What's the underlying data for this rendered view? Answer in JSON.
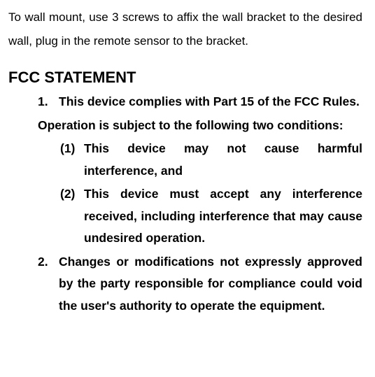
{
  "intro": "To wall mount, use 3 screws to affix the wall bracket to the desired wall, plug in the remote sensor to the bracket.",
  "heading": "FCC STATEMENT",
  "items": [
    {
      "num": "1.",
      "text": "This device complies with Part 15 of the FCC Rules."
    }
  ],
  "after_item1": "Operation is subject to the following two conditions:",
  "sub_items": [
    {
      "num": "(1)",
      "text": "This device may not cause harmful interference, and"
    },
    {
      "num": "(2)",
      "text": "This device must accept any interference received, including interference that may cause undesired operation."
    }
  ],
  "item2": {
    "num": "2.",
    "text": "Changes or modifications not expressly approved by the party responsible for compliance could void the user's authority to operate the equipment."
  },
  "style": {
    "body_bg": "#ffffff",
    "text_color": "#000000",
    "intro_fontsize": 17,
    "heading_fontsize": 22,
    "list_fontsize": 17.5,
    "line_height": 1.8,
    "font_family": "Arial, Helvetica, sans-serif"
  }
}
